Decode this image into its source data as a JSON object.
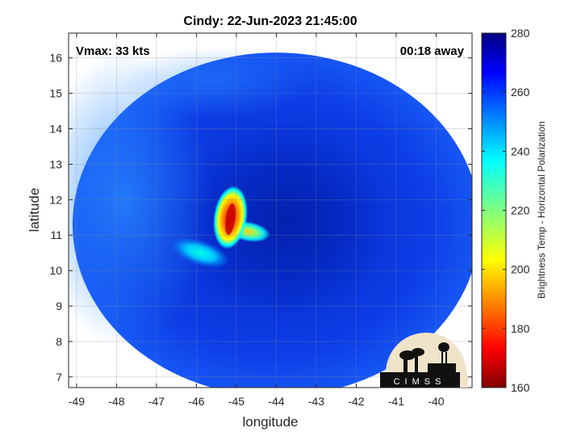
{
  "figure": {
    "title": "Cindy: 22-Jun-2023 21:45:00",
    "vmax_text": "Vmax: 33 kts",
    "time_offset_text": "00:18 away",
    "logo_text": "CIMSS"
  },
  "chart_data": {
    "type": "heatmap",
    "title": "Cindy: 22-Jun-2023 21:45:00",
    "xlabel": "longitude",
    "ylabel": "latitude",
    "xlim": [
      -49.2,
      -39.1
    ],
    "ylim": [
      6.7,
      16.7
    ],
    "xticks": [
      -49,
      -48,
      -47,
      -46,
      -45,
      -44,
      -43,
      -42,
      -41,
      -40
    ],
    "yticks": [
      7,
      8,
      9,
      10,
      11,
      12,
      13,
      14,
      15,
      16
    ],
    "grid": true,
    "swath": {
      "center_lon": -44.0,
      "center_lat": 11.3,
      "radius_deg_lon": 5.1,
      "radius_deg_lat": 4.85
    },
    "colorbar": {
      "label": "Brightness Temp - Horizontal Polarization",
      "range": [
        160,
        280
      ],
      "ticks": [
        280,
        260,
        240,
        220,
        200,
        180,
        160
      ],
      "colormap": "jet"
    },
    "features": [
      {
        "name": "cold core",
        "lon": -45.15,
        "lat": 11.5,
        "min_temp": 172
      },
      {
        "name": "cold band",
        "lon": -45.9,
        "lat": 10.5,
        "min_temp": 238
      },
      {
        "name": "cold arm",
        "lon": -44.7,
        "lat": 11.1,
        "min_temp": 215
      }
    ],
    "background_temps": {
      "outer_swath": 258,
      "inner_core": 270
    }
  }
}
